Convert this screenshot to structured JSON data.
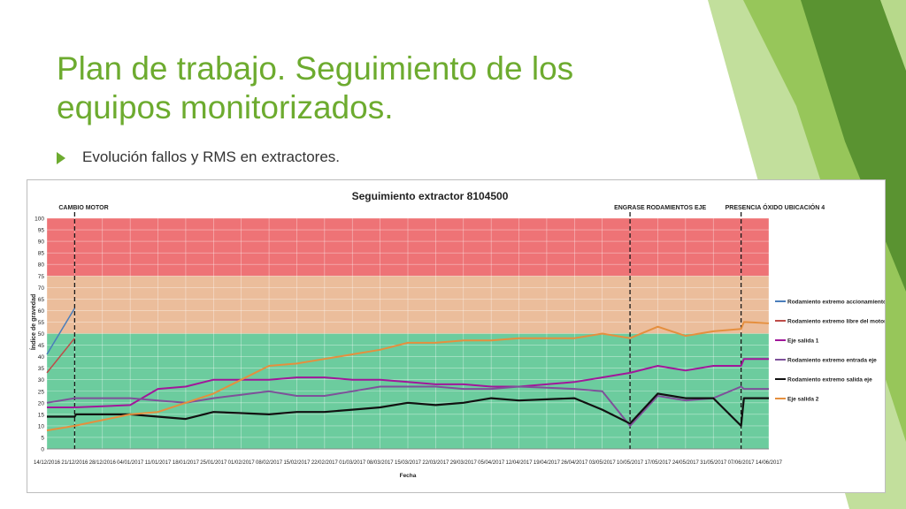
{
  "slide": {
    "title": "Plan de trabajo. Seguimiento de los equipos monitorizados.",
    "bullet": "Evolución fallos y RMS en extractores.",
    "colors": {
      "title": "#6dab2f",
      "bullet": "#6dab2f",
      "text": "#333333"
    }
  },
  "chart_data": {
    "type": "line",
    "title": "Seguimiento extractor 8104500",
    "xlabel": "Fecha",
    "ylabel": "Índice de gravedad",
    "ylim": [
      0,
      100
    ],
    "yticks": [
      0,
      5,
      10,
      15,
      20,
      25,
      30,
      35,
      40,
      45,
      50,
      55,
      60,
      65,
      70,
      75,
      80,
      85,
      90,
      95,
      100
    ],
    "grid": true,
    "legend_position": "right",
    "bands": [
      {
        "from": 0,
        "to": 50,
        "color": "#6ccc9e"
      },
      {
        "from": 50,
        "to": 75,
        "color": "#ebbd9b"
      },
      {
        "from": 75,
        "to": 100,
        "color": "#ee7376"
      }
    ],
    "categories": [
      "14/12/2016",
      "21/12/2016",
      "28/12/2016",
      "04/01/2017",
      "11/01/2017",
      "18/01/2017",
      "25/01/2017",
      "01/02/2017",
      "08/02/2017",
      "15/02/2017",
      "22/02/2017",
      "01/03/2017",
      "08/03/2017",
      "15/03/2017",
      "22/03/2017",
      "29/03/2017",
      "05/04/2017",
      "12/04/2017",
      "19/04/2017",
      "26/04/2017",
      "03/05/2017",
      "10/05/2017",
      "17/05/2017",
      "24/05/2017",
      "31/05/2017",
      "07/06/2017",
      "14/06/2017"
    ],
    "events": [
      {
        "x": "21/12/2016",
        "label": "CAMBIO MOTOR"
      },
      {
        "x": "10/05/2017",
        "label": "ENGRASE RODAMIENTOS EJE"
      },
      {
        "x": "07/06/2017",
        "label": "PRESENCIA ÓXIDO UBICACIÓN 4"
      }
    ],
    "series": [
      {
        "name": "Rodamiento extremo accionamiento motor",
        "color": "#4a7ebb",
        "width": 1.5,
        "points": [
          [
            0,
            41
          ],
          [
            1,
            61
          ]
        ]
      },
      {
        "name": "Rodamiento extremo libre del motor",
        "color": "#be4b48",
        "width": 1.5,
        "points": [
          [
            0,
            33
          ],
          [
            1,
            48
          ]
        ]
      },
      {
        "name": "Eje salida 1",
        "color": "#a1179a",
        "width": 2,
        "points": [
          [
            0,
            18
          ],
          [
            1,
            18
          ],
          [
            2,
            18.5
          ],
          [
            3,
            19
          ],
          [
            4,
            26
          ],
          [
            5,
            27
          ],
          [
            6,
            30
          ],
          [
            7,
            30
          ],
          [
            8,
            30
          ],
          [
            9,
            31
          ],
          [
            10,
            31
          ],
          [
            11,
            30
          ],
          [
            12,
            30
          ],
          [
            13,
            29
          ],
          [
            14,
            28
          ],
          [
            15,
            28
          ],
          [
            16,
            27
          ],
          [
            17,
            27
          ],
          [
            18,
            28
          ],
          [
            19,
            29
          ],
          [
            20,
            31
          ],
          [
            21,
            33
          ],
          [
            22,
            36
          ],
          [
            23,
            34
          ],
          [
            24,
            36
          ],
          [
            25,
            36
          ],
          [
            25.1,
            39
          ],
          [
            26,
            39
          ]
        ]
      },
      {
        "name": "Rodamiento extremo entrada eje",
        "color": "#7e519a",
        "width": 2,
        "points": [
          [
            0,
            20
          ],
          [
            1,
            22
          ],
          [
            2,
            22
          ],
          [
            3,
            22
          ],
          [
            4,
            21
          ],
          [
            5,
            20
          ],
          [
            6,
            22
          ],
          [
            7,
            23.5
          ],
          [
            8,
            25
          ],
          [
            9,
            23
          ],
          [
            10,
            23
          ],
          [
            11,
            25
          ],
          [
            12,
            27
          ],
          [
            13,
            27
          ],
          [
            14,
            27
          ],
          [
            15,
            26
          ],
          [
            16,
            26
          ],
          [
            17,
            27
          ],
          [
            18,
            26.5
          ],
          [
            19,
            26
          ],
          [
            20,
            25
          ],
          [
            21,
            10
          ],
          [
            22,
            23
          ],
          [
            23,
            21
          ],
          [
            24,
            22
          ],
          [
            25,
            27
          ],
          [
            25.1,
            26
          ],
          [
            26,
            26
          ]
        ]
      },
      {
        "name": "Rodamiento extremo salida eje",
        "color": "#111111",
        "width": 2.2,
        "points": [
          [
            0,
            14
          ],
          [
            1,
            14
          ],
          [
            1.05,
            15
          ],
          [
            2,
            15
          ],
          [
            3,
            15
          ],
          [
            4,
            14
          ],
          [
            5,
            13
          ],
          [
            6,
            16
          ],
          [
            7,
            15.5
          ],
          [
            8,
            15
          ],
          [
            9,
            16
          ],
          [
            10,
            16
          ],
          [
            11,
            17
          ],
          [
            12,
            18
          ],
          [
            13,
            20
          ],
          [
            14,
            19
          ],
          [
            15,
            20
          ],
          [
            16,
            22
          ],
          [
            17,
            21
          ],
          [
            18,
            21.5
          ],
          [
            19,
            22
          ],
          [
            20,
            17
          ],
          [
            21,
            11
          ],
          [
            22,
            24
          ],
          [
            23,
            22
          ],
          [
            24,
            22
          ],
          [
            25,
            10
          ],
          [
            25.1,
            22
          ],
          [
            26,
            22
          ]
        ]
      },
      {
        "name": "Eje salida 2",
        "color": "#e58f3e",
        "width": 2,
        "points": [
          [
            0,
            8
          ],
          [
            1,
            10
          ],
          [
            2,
            12.5
          ],
          [
            3,
            15
          ],
          [
            4,
            16
          ],
          [
            5,
            20
          ],
          [
            6,
            24
          ],
          [
            7,
            30
          ],
          [
            8,
            36
          ],
          [
            9,
            37
          ],
          [
            10,
            39
          ],
          [
            11,
            41
          ],
          [
            12,
            43
          ],
          [
            13,
            46
          ],
          [
            14,
            46
          ],
          [
            15,
            47
          ],
          [
            16,
            47
          ],
          [
            17,
            48
          ],
          [
            18,
            48
          ],
          [
            19,
            48
          ],
          [
            20,
            50
          ],
          [
            21,
            48
          ],
          [
            22,
            53
          ],
          [
            23,
            49
          ],
          [
            24,
            51
          ],
          [
            25,
            52
          ],
          [
            25.1,
            55
          ],
          [
            26,
            54.5
          ]
        ]
      }
    ]
  }
}
